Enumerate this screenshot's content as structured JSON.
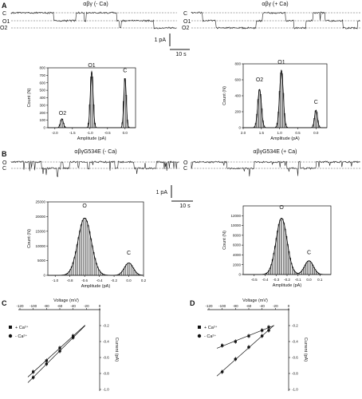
{
  "panels": {
    "A": {
      "letter": "A",
      "left_title": "αβγ (- Ca)",
      "right_title": "αβγ (+ Ca)",
      "left_trace_levels": [
        "C",
        "O1",
        "O2"
      ],
      "right_trace_levels": [
        "C",
        "O1",
        "O2"
      ],
      "scale_current": "1 pA",
      "scale_time": "10 s"
    },
    "B": {
      "letter": "B",
      "left_title": "αβγG534E (- Ca)",
      "right_title": "αβγG534E (+ Ca)",
      "left_trace_levels": [
        "O",
        "C"
      ],
      "right_trace_levels": [
        "O",
        "C"
      ],
      "scale_current": "1 pA",
      "scale_time": "10 s"
    },
    "C": {
      "letter": "C"
    },
    "D": {
      "letter": "D"
    }
  },
  "chart_data": [
    {
      "id": "A-left",
      "type": "bar",
      "xlabel": "Amplitude (pA)",
      "ylabel": "Count (N)",
      "xlim": [
        -2.2,
        0.3
      ],
      "ylim": [
        0,
        800
      ],
      "xticks": [
        "-2.0",
        "-1.5",
        "-1.0",
        "-0.5",
        "0.0"
      ],
      "yticks": [
        "0",
        "100",
        "200",
        "300",
        "400",
        "500",
        "600",
        "700",
        "800"
      ],
      "peak_labels": [
        {
          "text": "O2",
          "x": -1.78,
          "y": 150
        },
        {
          "text": "O1",
          "x": -0.95,
          "y": 790
        },
        {
          "text": "C",
          "x": 0.0,
          "y": 720
        }
      ],
      "peaks": [
        {
          "name": "O2",
          "mu": -1.8,
          "sigma": 0.04,
          "amp": 120
        },
        {
          "name": "O1",
          "mu": -0.95,
          "sigma": 0.04,
          "amp": 750
        },
        {
          "name": "C",
          "mu": 0.0,
          "sigma": 0.035,
          "amp": 660
        }
      ]
    },
    {
      "id": "A-right",
      "type": "bar",
      "xlabel": "Amplitude (pA)",
      "ylabel": "Count (N)",
      "xlim": [
        2.0,
        -0.3
      ],
      "ylim": [
        0,
        800
      ],
      "xticks": [
        "2.0",
        "1.5",
        "1.0",
        "0.5",
        "0.0"
      ],
      "yticks": [
        "0",
        "200",
        "400",
        "600",
        "800"
      ],
      "peak_labels": [
        {
          "text": "O2",
          "x": 1.55,
          "y": 560
        },
        {
          "text": "O1",
          "x": 0.95,
          "y": 780
        },
        {
          "text": "C",
          "x": 0.0,
          "y": 280
        }
      ],
      "peaks": [
        {
          "name": "O2",
          "mu": 1.55,
          "sigma": 0.05,
          "amp": 480
        },
        {
          "name": "O1",
          "mu": 0.95,
          "sigma": 0.05,
          "amp": 720
        },
        {
          "name": "C",
          "mu": 0.0,
          "sigma": 0.04,
          "amp": 220
        }
      ]
    },
    {
      "id": "B-left",
      "type": "bar",
      "xlabel": "Amplitude (pA)",
      "ylabel": "Count (N)",
      "xlim": [
        -1.1,
        0.2
      ],
      "ylim": [
        0,
        25000
      ],
      "xticks": [
        "-1.0",
        "-0.8",
        "-0.6",
        "-0.4",
        "-0.2",
        "0.0",
        "0.2"
      ],
      "yticks": [
        "0",
        "5000",
        "10000",
        "15000",
        "20000",
        "25000"
      ],
      "peak_labels": [
        {
          "text": "O",
          "x": -0.6,
          "y": 22500
        },
        {
          "text": "C",
          "x": 0.0,
          "y": 6500
        }
      ],
      "peaks": [
        {
          "name": "O",
          "mu": -0.6,
          "sigma": 0.09,
          "amp": 19500
        },
        {
          "name": "C",
          "mu": 0.0,
          "sigma": 0.06,
          "amp": 4200
        }
      ]
    },
    {
      "id": "B-right",
      "type": "bar",
      "xlabel": "Amplitude (pA)",
      "ylabel": "Count (N)",
      "xlim": [
        -0.6,
        0.2
      ],
      "ylim": [
        0,
        14000
      ],
      "xticks": [
        "-0.5",
        "-0.4",
        "-0.3",
        "-0.2",
        "-0.1",
        "0.0",
        "0.1"
      ],
      "yticks": [
        "0",
        "2000",
        "4000",
        "6000",
        "8000",
        "10000",
        "12000"
      ],
      "peak_labels": [
        {
          "text": "O",
          "x": -0.25,
          "y": 13000
        },
        {
          "text": "C",
          "x": 0.0,
          "y": 3800
        }
      ],
      "peaks": [
        {
          "name": "O",
          "mu": -0.25,
          "sigma": 0.05,
          "amp": 11500
        },
        {
          "name": "C",
          "mu": 0.0,
          "sigma": 0.04,
          "amp": 2800
        }
      ]
    },
    {
      "id": "C",
      "type": "scatter",
      "xlabel": "Voltage (mV)",
      "ylabel": "Current (pA)",
      "xlim": [
        -120,
        0
      ],
      "ylim": [
        -1.0,
        0
      ],
      "xticks": [
        "-120",
        "-100",
        "-80",
        "-60",
        "-40",
        "-20",
        "0"
      ],
      "yticks": [
        "-0.2",
        "-0.4",
        "-0.6",
        "-0.8",
        "-1.0"
      ],
      "legend": [
        {
          "label": "+ Ca²⁺",
          "marker": "square"
        },
        {
          "label": "- Ca²⁺",
          "marker": "circle"
        }
      ],
      "series": [
        {
          "marker": "square",
          "x": [
            -100,
            -80,
            -60,
            -40
          ],
          "y": [
            -0.78,
            -0.64,
            -0.48,
            -0.33
          ]
        },
        {
          "marker": "circle",
          "x": [
            -100,
            -80,
            -60,
            -40
          ],
          "y": [
            -0.85,
            -0.68,
            -0.52,
            -0.35
          ]
        }
      ]
    },
    {
      "id": "D",
      "type": "scatter",
      "xlabel": "Voltage (mV)",
      "ylabel": "Current (pA)",
      "xlim": [
        -120,
        0
      ],
      "ylim": [
        -1.0,
        0
      ],
      "xticks": [
        "-120",
        "-100",
        "-80",
        "-60",
        "-40",
        "-20",
        "0"
      ],
      "yticks": [
        "-0.2",
        "-0.4",
        "-0.6",
        "-0.8",
        "-1.0"
      ],
      "legend": [
        {
          "label": "+ Ca²⁺",
          "marker": "square"
        },
        {
          "label": "- Ca²⁺",
          "marker": "circle"
        }
      ],
      "series": [
        {
          "marker": "square",
          "x": [
            -100,
            -80,
            -60,
            -40,
            -30
          ],
          "y": [
            -0.45,
            -0.4,
            -0.33,
            -0.26,
            -0.22
          ]
        },
        {
          "marker": "circle",
          "x": [
            -100,
            -80,
            -60,
            -40,
            -30
          ],
          "y": [
            -0.78,
            -0.62,
            -0.47,
            -0.33,
            -0.26
          ]
        }
      ]
    }
  ]
}
